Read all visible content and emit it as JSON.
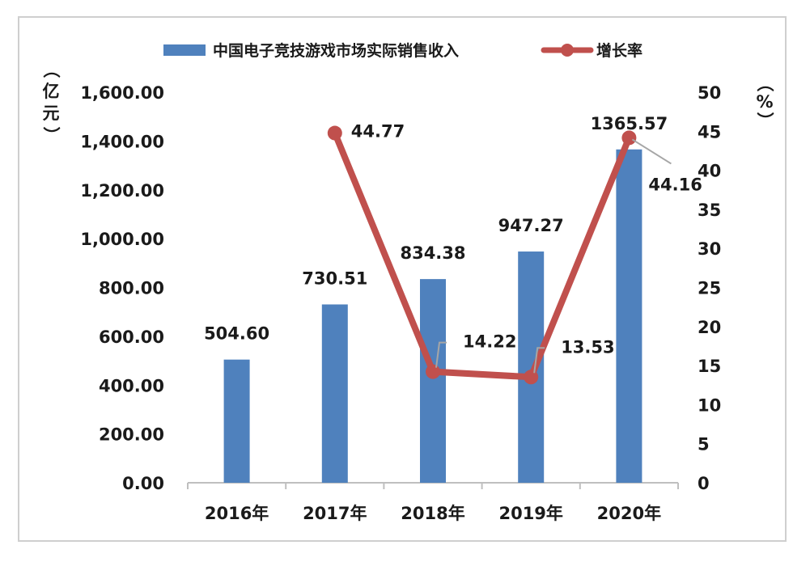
{
  "chart_data": {
    "type": "bar",
    "categories": [
      "2016年",
      "2017年",
      "2018年",
      "2019年",
      "2020年"
    ],
    "series": [
      {
        "name": "中国电子竞技游戏市场实际销售收入",
        "type": "bar",
        "axis": "left",
        "values": [
          504.6,
          730.51,
          834.38,
          947.27,
          1365.57
        ],
        "labels": [
          "504.60",
          "730.51",
          "834.38",
          "947.27",
          "1365.57"
        ],
        "color": "#4f81bd"
      },
      {
        "name": "增长率",
        "type": "line",
        "axis": "right",
        "values": [
          null,
          44.77,
          14.22,
          13.53,
          44.16
        ],
        "labels": [
          "",
          "44.77",
          "14.22",
          "13.53",
          "44.16"
        ],
        "color": "#c0504d"
      }
    ],
    "y_left": {
      "label": "（亿元）",
      "ylim": [
        0,
        1600
      ],
      "ticks": [
        "0.00",
        "200.00",
        "400.00",
        "600.00",
        "800.00",
        "1,000.00",
        "1,200.00",
        "1,400.00",
        "1,600.00"
      ]
    },
    "y_right": {
      "label": "（%）",
      "ylim": [
        0,
        50
      ],
      "ticks": [
        "0",
        "5",
        "10",
        "15",
        "20",
        "25",
        "30",
        "35",
        "40",
        "45",
        "50"
      ]
    },
    "grid": false,
    "legend": "top-center"
  }
}
